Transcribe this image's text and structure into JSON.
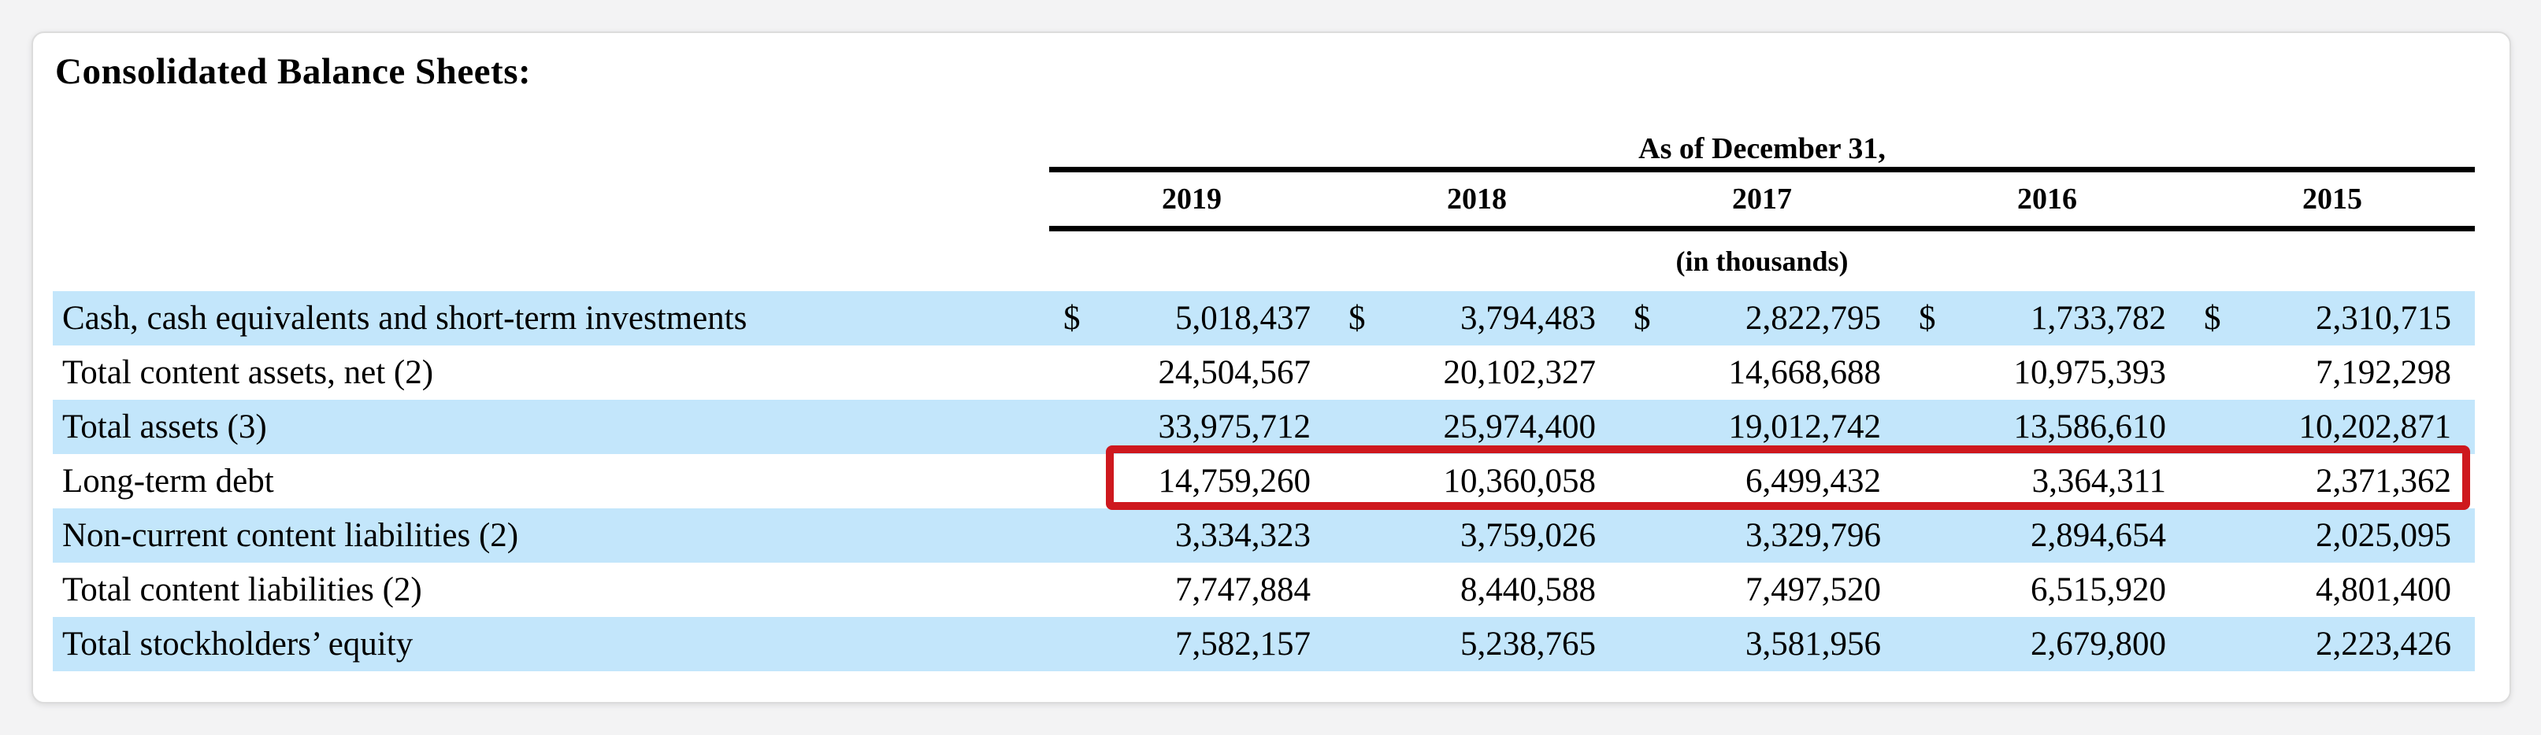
{
  "page": {
    "title": "Consolidated Balance Sheets:"
  },
  "table": {
    "header_group": "As of December 31,",
    "unit_note": "(in thousands)",
    "years": [
      "2019",
      "2018",
      "2017",
      "2016",
      "2015"
    ],
    "rows": [
      {
        "label": "Cash, cash equivalents and short-term investments",
        "currency": "$",
        "highlighted": true,
        "boxed": false,
        "values": [
          "5,018,437",
          "3,794,483",
          "2,822,795",
          "1,733,782",
          "2,310,715"
        ]
      },
      {
        "label": "Total content assets, net (2)",
        "currency": "",
        "highlighted": false,
        "boxed": false,
        "values": [
          "24,504,567",
          "20,102,327",
          "14,668,688",
          "10,975,393",
          "7,192,298"
        ]
      },
      {
        "label": "Total assets (3)",
        "currency": "",
        "highlighted": true,
        "boxed": false,
        "values": [
          "33,975,712",
          "25,974,400",
          "19,012,742",
          "13,586,610",
          "10,202,871"
        ]
      },
      {
        "label": "Long-term debt",
        "currency": "",
        "highlighted": false,
        "boxed": true,
        "values": [
          "14,759,260",
          "10,360,058",
          "6,499,432",
          "3,364,311",
          "2,371,362"
        ]
      },
      {
        "label": "Non-current content liabilities (2)",
        "currency": "",
        "highlighted": true,
        "boxed": false,
        "values": [
          "3,334,323",
          "3,759,026",
          "3,329,796",
          "2,894,654",
          "2,025,095"
        ]
      },
      {
        "label": "Total content liabilities (2)",
        "currency": "",
        "highlighted": false,
        "boxed": false,
        "values": [
          "7,747,884",
          "8,440,588",
          "7,497,520",
          "6,515,920",
          "4,801,400"
        ]
      },
      {
        "label": "Total stockholders’ equity",
        "currency": "",
        "highlighted": true,
        "boxed": false,
        "values": [
          "7,582,157",
          "5,238,765",
          "3,581,956",
          "2,679,800",
          "2,223,426"
        ]
      }
    ]
  },
  "colors": {
    "row_highlight": "#c3e6fb",
    "annotation_box": "#ce181e",
    "header_rule": "#000000",
    "card_background": "#ffffff",
    "page_background": "#f3f3f4"
  }
}
